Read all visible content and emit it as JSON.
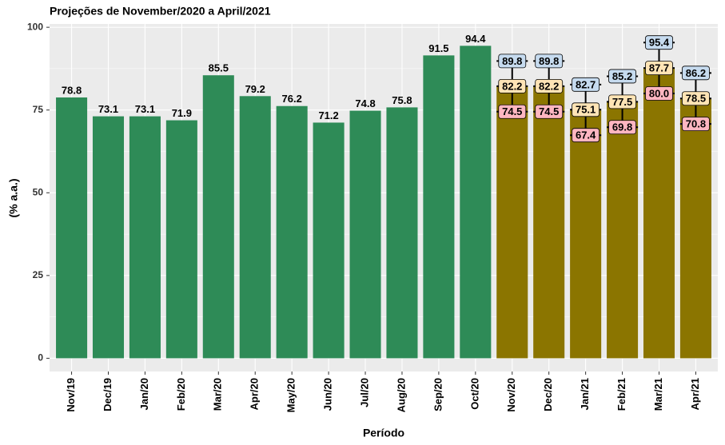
{
  "chart_data": {
    "type": "bar",
    "title": "Projeções de November/2020 a April/2021",
    "x_label": "Período",
    "y_label": "(% a.a.)",
    "categories": [
      "Nov/19",
      "Dec/19",
      "Jan/20",
      "Feb/20",
      "Mar/20",
      "Apr/20",
      "May/20",
      "Jun/20",
      "Jul/20",
      "Aug/20",
      "Sep/20",
      "Oct/20",
      "Nov/20",
      "Dec/20",
      "Jan/21",
      "Feb/21",
      "Mar/21",
      "Apr/21"
    ],
    "series": [
      {
        "color": "#2e8b57",
        "values": [
          78.8,
          73.1,
          73.1,
          71.9,
          85.5,
          79.2,
          76.2,
          71.2,
          74.8,
          75.8,
          91.5,
          94.4,
          null,
          null,
          null,
          null,
          null,
          null
        ]
      },
      {
        "color": "#8b7500",
        "values": [
          null,
          null,
          null,
          null,
          null,
          null,
          null,
          null,
          null,
          null,
          null,
          null,
          82.2,
          82.2,
          75.1,
          77.5,
          87.7,
          78.5
        ],
        "low": [
          null,
          null,
          null,
          null,
          null,
          null,
          null,
          null,
          null,
          null,
          null,
          null,
          74.5,
          74.5,
          67.4,
          69.8,
          80.0,
          70.8
        ],
        "low_labels": [
          null,
          null,
          null,
          null,
          null,
          null,
          null,
          null,
          null,
          null,
          null,
          null,
          "74.5",
          "74.5",
          "67.4",
          "69.8",
          "80.0",
          "70.8"
        ],
        "high": [
          null,
          null,
          null,
          null,
          null,
          null,
          null,
          null,
          null,
          null,
          null,
          null,
          89.8,
          89.8,
          82.7,
          85.2,
          95.4,
          86.2
        ],
        "low_color": "#ffb6c1",
        "mid_color": "#ffe4b5",
        "high_color": "#c6dbef"
      }
    ],
    "ylim": [
      -4,
      101
    ],
    "yticks": [
      0,
      25,
      50,
      75,
      100
    ],
    "grid": true
  }
}
